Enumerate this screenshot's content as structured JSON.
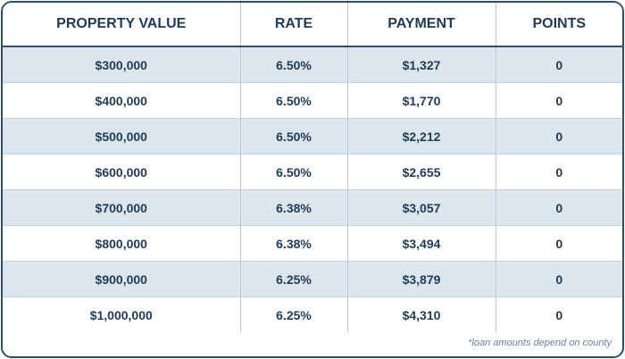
{
  "table": {
    "headers": [
      "PROPERTY VALUE",
      "RATE",
      "PAYMENT",
      "POINTS"
    ],
    "rows": [
      [
        "$300,000",
        "6.50%",
        "$1,327",
        "0"
      ],
      [
        "$400,000",
        "6.50%",
        "$1,770",
        "0"
      ],
      [
        "$500,000",
        "6.50%",
        "$2,212",
        "0"
      ],
      [
        "$600,000",
        "6.50%",
        "$2,655",
        "0"
      ],
      [
        "$700,000",
        "6.38%",
        "$3,057",
        "0"
      ],
      [
        "$800,000",
        "6.38%",
        "$3,494",
        "0"
      ],
      [
        "$900,000",
        "6.25%",
        "$3,879",
        "0"
      ],
      [
        "$1,000,000",
        "6.25%",
        "$4,310",
        "0"
      ]
    ]
  },
  "footnote": "*loan amounts depend on county",
  "colors": {
    "border": "#2f4f6c",
    "header_text": "#1f3b57",
    "row_shade": "#dce6ef",
    "footnote_text": "#6a7f94"
  }
}
